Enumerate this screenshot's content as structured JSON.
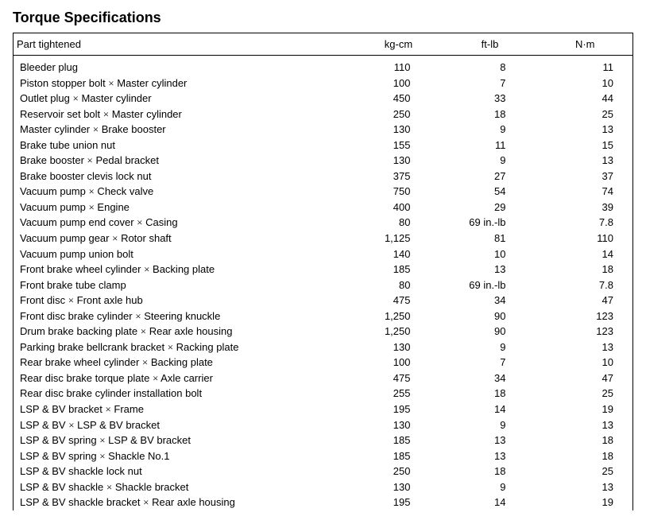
{
  "title": "Torque Specifications",
  "headers": {
    "part": "Part tightened",
    "kgcm": "kg-cm",
    "ftlb": "ft-lb",
    "nm": "N·m"
  },
  "rows": [
    {
      "part": "Bleeder plug",
      "kgcm": "110",
      "ftlb": "8",
      "nm": "11"
    },
    {
      "part": "Piston stopper bolt × Master cylinder",
      "kgcm": "100",
      "ftlb": "7",
      "nm": "10"
    },
    {
      "part": "Outlet plug × Master cylinder",
      "kgcm": "450",
      "ftlb": "33",
      "nm": "44"
    },
    {
      "part": "Reservoir set bolt × Master cylinder",
      "kgcm": "250",
      "ftlb": "18",
      "nm": "25"
    },
    {
      "part": "Master cylinder × Brake booster",
      "kgcm": "130",
      "ftlb": "9",
      "nm": "13"
    },
    {
      "part": "Brake tube union nut",
      "kgcm": "155",
      "ftlb": "11",
      "nm": "15"
    },
    {
      "part": "Brake booster × Pedal bracket",
      "kgcm": "130",
      "ftlb": "9",
      "nm": "13"
    },
    {
      "part": "Brake booster clevis lock nut",
      "kgcm": "375",
      "ftlb": "27",
      "nm": "37"
    },
    {
      "part": "Vacuum pump × Check valve",
      "kgcm": "750",
      "ftlb": "54",
      "nm": "74"
    },
    {
      "part": "Vacuum pump × Engine",
      "kgcm": "400",
      "ftlb": "29",
      "nm": "39"
    },
    {
      "part": "Vacuum pump end cover × Casing",
      "kgcm": "80",
      "ftlb": "69 in.-lb",
      "nm": "7.8"
    },
    {
      "part": "Vacuum pump gear × Rotor shaft",
      "kgcm": "1,125",
      "ftlb": "81",
      "nm": "110"
    },
    {
      "part": "Vacuum pump union bolt",
      "kgcm": "140",
      "ftlb": "10",
      "nm": "14"
    },
    {
      "part": "Front brake wheel cylinder × Backing plate",
      "kgcm": "185",
      "ftlb": "13",
      "nm": "18"
    },
    {
      "part": "Front brake tube clamp",
      "kgcm": "80",
      "ftlb": "69 in.-lb",
      "nm": "7.8"
    },
    {
      "part": "Front disc × Front axle hub",
      "kgcm": "475",
      "ftlb": "34",
      "nm": "47"
    },
    {
      "part": "Front disc brake cylinder × Steering knuckle",
      "kgcm": "1,250",
      "ftlb": "90",
      "nm": "123"
    },
    {
      "part": "Drum brake backing plate × Rear axle housing",
      "kgcm": "1,250",
      "ftlb": "90",
      "nm": "123"
    },
    {
      "part": "Parking brake bellcrank bracket × Racking plate",
      "kgcm": "130",
      "ftlb": "9",
      "nm": "13"
    },
    {
      "part": "Rear brake wheel cylinder × Backing plate",
      "kgcm": "100",
      "ftlb": "7",
      "nm": "10"
    },
    {
      "part": "Rear disc brake torque plate × Axle carrier",
      "kgcm": "475",
      "ftlb": "34",
      "nm": "47"
    },
    {
      "part": "Rear disc brake cylinder installation bolt",
      "kgcm": "255",
      "ftlb": "18",
      "nm": "25"
    },
    {
      "part": "LSP & BV bracket × Frame",
      "kgcm": "195",
      "ftlb": "14",
      "nm": "19"
    },
    {
      "part": "LSP & BV × LSP & BV bracket",
      "kgcm": "130",
      "ftlb": "9",
      "nm": "13"
    },
    {
      "part": "LSP & BV spring × LSP & BV bracket",
      "kgcm": "185",
      "ftlb": "13",
      "nm": "18"
    },
    {
      "part": "LSP & BV spring × Shackle No.1",
      "kgcm": "185",
      "ftlb": "13",
      "nm": "18"
    },
    {
      "part": "LSP & BV shackle lock nut",
      "kgcm": "250",
      "ftlb": "18",
      "nm": "25"
    },
    {
      "part": "LSP & BV shackle × Shackle bracket",
      "kgcm": "130",
      "ftlb": "9",
      "nm": "13"
    },
    {
      "part": "LSP & BV shackle bracket × Rear axle housing",
      "kgcm": "195",
      "ftlb": "14",
      "nm": "19"
    }
  ]
}
